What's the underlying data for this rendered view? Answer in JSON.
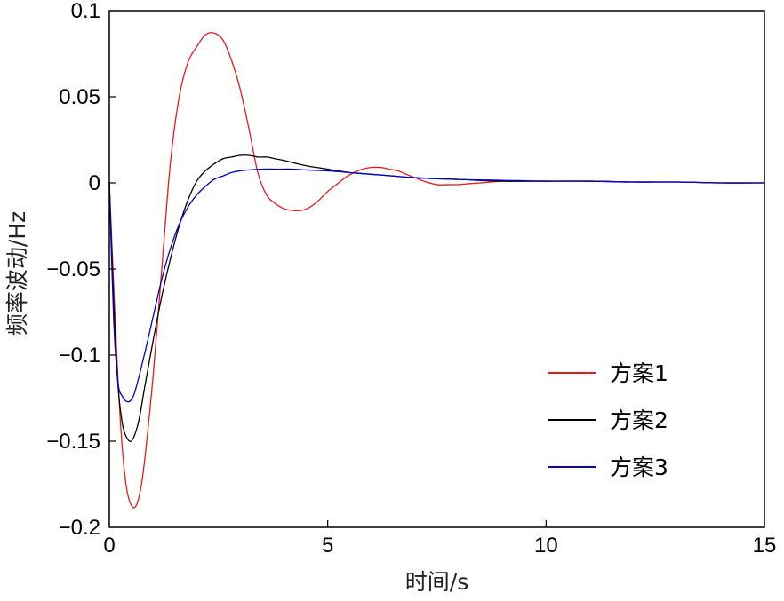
{
  "chart_data": {
    "type": "line",
    "title": "",
    "xlabel": "时间/s",
    "ylabel": "频率波动/Hz",
    "xlim": [
      0,
      15
    ],
    "ylim": [
      -0.2,
      0.1
    ],
    "xticks": [
      0,
      5,
      10,
      15
    ],
    "xtick_labels": [
      "0",
      "5",
      "10",
      "15"
    ],
    "yticks": [
      0.1,
      0.05,
      0,
      -0.05,
      -0.1,
      -0.15,
      -0.2
    ],
    "ytick_labels": [
      "0.1",
      "0.05",
      "0",
      "−0.05",
      "−0.1",
      "−0.15",
      "−0.2"
    ],
    "grid": false,
    "legend_position": "lower-right",
    "series": [
      {
        "name": "方案1",
        "color": "#e8191c",
        "x": [
          0,
          0.1,
          0.2,
          0.3,
          0.4,
          0.5,
          0.6,
          0.7,
          0.8,
          1.0,
          1.2,
          1.4,
          1.6,
          1.8,
          2.0,
          2.2,
          2.4,
          2.6,
          2.8,
          3.0,
          3.2,
          3.4,
          3.6,
          3.8,
          4.0,
          4.2,
          4.4,
          4.6,
          4.8,
          5.0,
          5.2,
          5.4,
          5.6,
          5.8,
          6.0,
          6.2,
          6.4,
          6.6,
          6.8,
          7.0,
          7.2,
          7.5,
          7.8,
          8.0,
          8.2,
          8.5,
          9.0,
          9.5,
          10.0,
          11.0,
          12.0,
          13.0,
          14.0,
          15.0
        ],
        "y": [
          0,
          -0.06,
          -0.115,
          -0.155,
          -0.178,
          -0.187,
          -0.188,
          -0.18,
          -0.163,
          -0.113,
          -0.05,
          0.012,
          0.05,
          0.07,
          0.079,
          0.086,
          0.087,
          0.083,
          0.071,
          0.054,
          0.031,
          0.006,
          -0.007,
          -0.012,
          -0.015,
          -0.016,
          -0.016,
          -0.014,
          -0.01,
          -0.005,
          -0.001,
          0.003,
          0.006,
          0.008,
          0.009,
          0.009,
          0.008,
          0.007,
          0.005,
          0.003,
          0.001,
          -0.001,
          -0.001,
          -0.001,
          -0.0005,
          0,
          0.001,
          0.001,
          0.001,
          0.001,
          0.0005,
          0.0005,
          0,
          0
        ]
      },
      {
        "name": "方案2",
        "color": "#000000",
        "x": [
          0,
          0.1,
          0.2,
          0.3,
          0.4,
          0.5,
          0.6,
          0.7,
          0.8,
          1.0,
          1.2,
          1.4,
          1.6,
          1.8,
          2.0,
          2.2,
          2.4,
          2.6,
          2.8,
          3.0,
          3.2,
          3.4,
          3.6,
          3.8,
          4.0,
          4.5,
          5.0,
          5.5,
          6.0,
          6.5,
          7.0,
          8.0,
          9.0,
          10.0,
          11.0,
          12.0,
          13.0,
          14.0,
          15.0
        ],
        "y": [
          0,
          -0.07,
          -0.118,
          -0.14,
          -0.148,
          -0.15,
          -0.145,
          -0.135,
          -0.12,
          -0.092,
          -0.066,
          -0.044,
          -0.025,
          -0.01,
          0.001,
          0.007,
          0.011,
          0.014,
          0.015,
          0.016,
          0.016,
          0.015,
          0.015,
          0.014,
          0.013,
          0.01,
          0.008,
          0.006,
          0.005,
          0.004,
          0.003,
          0.002,
          0.001,
          0.001,
          0.001,
          0.0005,
          0.0005,
          0,
          0
        ]
      },
      {
        "name": "方案3",
        "color": "#0000c8",
        "x": [
          0,
          0.1,
          0.2,
          0.3,
          0.4,
          0.5,
          0.6,
          0.8,
          1.0,
          1.2,
          1.4,
          1.6,
          1.8,
          2.0,
          2.2,
          2.4,
          2.6,
          2.8,
          3.0,
          3.2,
          3.5,
          3.8,
          4.0,
          4.2,
          4.5,
          5.0,
          5.5,
          6.0,
          6.5,
          7.0,
          8.0,
          9.0,
          10.0,
          11.0,
          12.0,
          13.0,
          14.0,
          15.0
        ],
        "y": [
          0,
          -0.08,
          -0.116,
          -0.124,
          -0.127,
          -0.126,
          -0.12,
          -0.1,
          -0.078,
          -0.056,
          -0.038,
          -0.024,
          -0.014,
          -0.007,
          -0.002,
          0.002,
          0.004,
          0.006,
          0.007,
          0.0075,
          0.008,
          0.008,
          0.008,
          0.008,
          0.0075,
          0.007,
          0.006,
          0.005,
          0.004,
          0.003,
          0.002,
          0.0015,
          0.001,
          0.001,
          0.0005,
          0.0005,
          0,
          0
        ]
      }
    ]
  }
}
